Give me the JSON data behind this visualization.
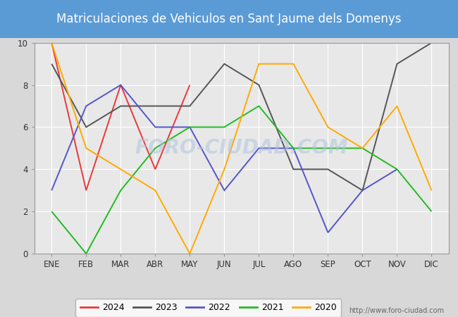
{
  "title": "Matriculaciones de Vehiculos en Sant Jaume dels Domenys",
  "months": [
    "ENE",
    "FEB",
    "MAR",
    "ABR",
    "MAY",
    "JUN",
    "JUL",
    "AGO",
    "SEP",
    "OCT",
    "NOV",
    "DIC"
  ],
  "series": {
    "2024": {
      "values": [
        10,
        3,
        8,
        4,
        8,
        null,
        null,
        null,
        null,
        null,
        null,
        null
      ],
      "color": "#e8393a"
    },
    "2023": {
      "values": [
        9,
        6,
        7,
        7,
        7,
        9,
        8,
        4,
        4,
        3,
        9,
        10
      ],
      "color": "#555555"
    },
    "2022": {
      "values": [
        3,
        7,
        8,
        6,
        6,
        3,
        5,
        5,
        1,
        3,
        4,
        null
      ],
      "color": "#5555cc"
    },
    "2021": {
      "values": [
        2,
        0,
        3,
        5,
        6,
        6,
        7,
        5,
        5,
        5,
        4,
        2
      ],
      "color": "#22bb22"
    },
    "2020": {
      "values": [
        10,
        5,
        4,
        3,
        0,
        4,
        9,
        9,
        6,
        5,
        7,
        3
      ],
      "color": "#ffaa00"
    }
  },
  "ylim": [
    0,
    10
  ],
  "yticks": [
    0,
    2,
    4,
    6,
    8,
    10
  ],
  "title_background": "#5b9bd5",
  "title_color": "white",
  "title_fontsize": 12,
  "outer_background": "#d8d8d8",
  "plot_background": "#e8e8e8",
  "grid_color": "white",
  "watermark": "FORO-CIUDAD.COM",
  "url": "http://www.foro-ciudad.com",
  "legend_years": [
    "2024",
    "2023",
    "2022",
    "2021",
    "2020"
  ]
}
